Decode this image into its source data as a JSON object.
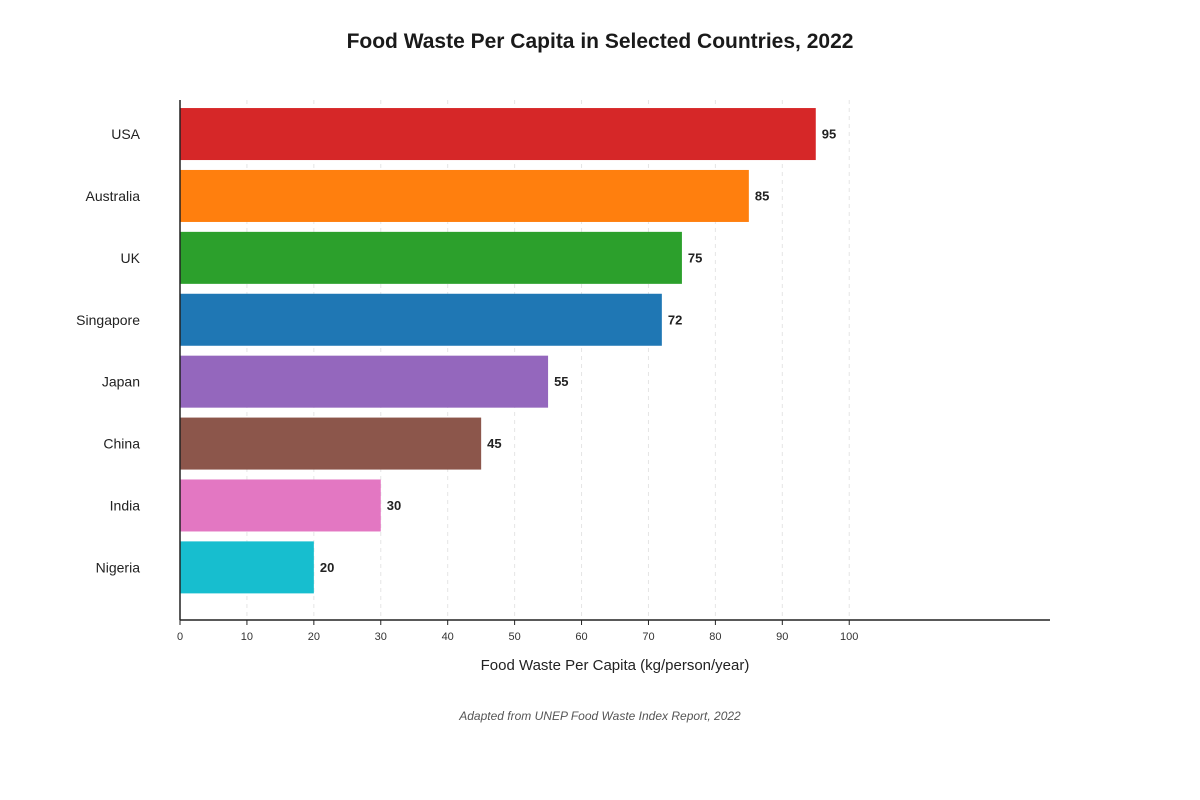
{
  "chart_data": {
    "type": "bar",
    "orientation": "horizontal",
    "title": "Food Waste Per Capita in Selected Countries, 2022",
    "xlabel": "Food Waste Per Capita (kg/person/year)",
    "ylabel": "",
    "caption": "Adapted from UNEP Food Waste Index Report, 2022",
    "categories": [
      "USA",
      "Australia",
      "UK",
      "Singapore",
      "Japan",
      "China",
      "India",
      "Nigeria"
    ],
    "values": [
      95,
      85,
      75,
      72,
      55,
      45,
      30,
      20
    ],
    "colors": [
      "#d62728",
      "#ff7f0e",
      "#2ca02c",
      "#1f77b4",
      "#9467bd",
      "#8c564b",
      "#e377c2",
      "#17becf"
    ],
    "xlim": [
      0,
      130
    ],
    "x_ticks": [
      0,
      10,
      20,
      30,
      40,
      50,
      60,
      70,
      80,
      90,
      100
    ],
    "grid": "vertical dashed",
    "legend": "none"
  }
}
